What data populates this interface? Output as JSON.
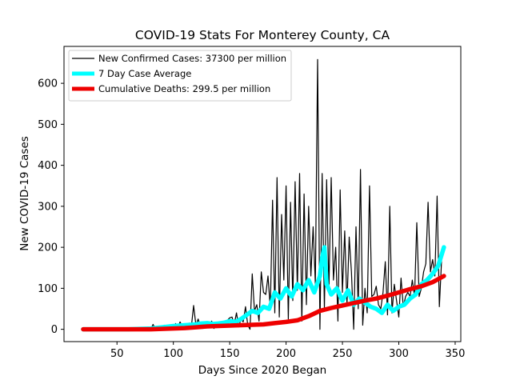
{
  "chart_data": {
    "type": "line",
    "title": "COVID-19 Stats For Monterey County, CA",
    "xlabel": "Days Since 2020 Began",
    "ylabel": "New COVID-19 Cases",
    "xlim": [
      3,
      355
    ],
    "ylim": [
      -30,
      690
    ],
    "xticks": [
      50,
      100,
      150,
      200,
      250,
      300,
      350
    ],
    "yticks": [
      0,
      100,
      200,
      300,
      400,
      500,
      600
    ],
    "grid": false,
    "legend_position": "top-left",
    "series": [
      {
        "name": "New Confirmed Cases: 37300 per million",
        "color": "#000000",
        "x": [
          80,
          82,
          84,
          86,
          88,
          90,
          92,
          94,
          96,
          98,
          100,
          102,
          104,
          106,
          108,
          110,
          112,
          114,
          116,
          118,
          120,
          122,
          124,
          126,
          128,
          130,
          132,
          134,
          136,
          138,
          140,
          142,
          144,
          146,
          148,
          150,
          152,
          154,
          156,
          158,
          160,
          162,
          164,
          166,
          168,
          170,
          172,
          174,
          176,
          178,
          180,
          182,
          184,
          186,
          188,
          190,
          192,
          194,
          196,
          198,
          200,
          202,
          204,
          206,
          208,
          210,
          212,
          214,
          216,
          218,
          220,
          222,
          224,
          226,
          228,
          230,
          232,
          234,
          236,
          238,
          240,
          242,
          244,
          246,
          248,
          250,
          252,
          254,
          256,
          258,
          260,
          262,
          264,
          266,
          268,
          270,
          272,
          274,
          276,
          278,
          280,
          282,
          284,
          286,
          288,
          290,
          292,
          294,
          296,
          298,
          300,
          302,
          304,
          306,
          308,
          310,
          312,
          314,
          316,
          318,
          320,
          322,
          324,
          326,
          328,
          330,
          332,
          334,
          336,
          338,
          340
        ],
        "y": [
          0,
          12,
          2,
          6,
          1,
          4,
          10,
          3,
          8,
          5,
          2,
          14,
          4,
          18,
          6,
          10,
          3,
          15,
          6,
          58,
          10,
          25,
          6,
          14,
          4,
          12,
          8,
          20,
          2,
          15,
          18,
          6,
          16,
          10,
          22,
          28,
          30,
          12,
          40,
          6,
          25,
          18,
          55,
          10,
          0,
          135,
          45,
          60,
          20,
          140,
          90,
          85,
          130,
          50,
          315,
          40,
          370,
          30,
          280,
          120,
          350,
          25,
          310,
          70,
          360,
          95,
          380,
          20,
          330,
          60,
          300,
          130,
          250,
          110,
          658,
          0,
          380,
          50,
          365,
          95,
          370,
          120,
          200,
          20,
          340,
          90,
          240,
          60,
          225,
          140,
          0,
          250,
          50,
          390,
          10,
          100,
          40,
          350,
          80,
          85,
          105,
          60,
          50,
          90,
          165,
          35,
          300,
          40,
          110,
          70,
          30,
          125,
          55,
          80,
          90,
          80,
          120,
          80,
          260,
          80,
          100,
          140,
          160,
          310,
          140,
          170,
          130,
          325,
          55,
          170,
          200
        ]
      },
      {
        "name": "7 Day Case Average",
        "color": "#00ffff",
        "x": [
          20,
          40,
          60,
          80,
          90,
          100,
          110,
          120,
          125,
          130,
          135,
          140,
          145,
          150,
          155,
          160,
          165,
          170,
          175,
          180,
          185,
          190,
          195,
          200,
          205,
          210,
          215,
          220,
          225,
          230,
          232,
          234,
          236,
          240,
          245,
          250,
          255,
          260,
          265,
          270,
          275,
          280,
          285,
          290,
          295,
          300,
          305,
          310,
          315,
          320,
          325,
          330,
          335,
          340
        ],
        "y": [
          0,
          0,
          0,
          2,
          5,
          8,
          10,
          12,
          14,
          15,
          13,
          14,
          16,
          20,
          18,
          25,
          35,
          45,
          40,
          55,
          50,
          90,
          75,
          100,
          80,
          110,
          95,
          120,
          90,
          130,
          175,
          200,
          110,
          85,
          100,
          70,
          95,
          60,
          75,
          65,
          55,
          50,
          40,
          60,
          45,
          55,
          60,
          75,
          85,
          110,
          120,
          135,
          155,
          200
        ]
      },
      {
        "name": "Cumulative Deaths: 299.5 per million",
        "color": "#ee0000",
        "x": [
          20,
          40,
          60,
          80,
          90,
          100,
          110,
          120,
          130,
          140,
          150,
          160,
          170,
          180,
          190,
          200,
          210,
          220,
          230,
          240,
          250,
          260,
          270,
          280,
          290,
          300,
          310,
          320,
          330,
          340
        ],
        "y": [
          0,
          0,
          0,
          0,
          1,
          2,
          3,
          5,
          7,
          8,
          9,
          10,
          11,
          12,
          15,
          18,
          22,
          32,
          45,
          52,
          58,
          64,
          70,
          75,
          82,
          90,
          98,
          105,
          115,
          130
        ]
      }
    ]
  }
}
